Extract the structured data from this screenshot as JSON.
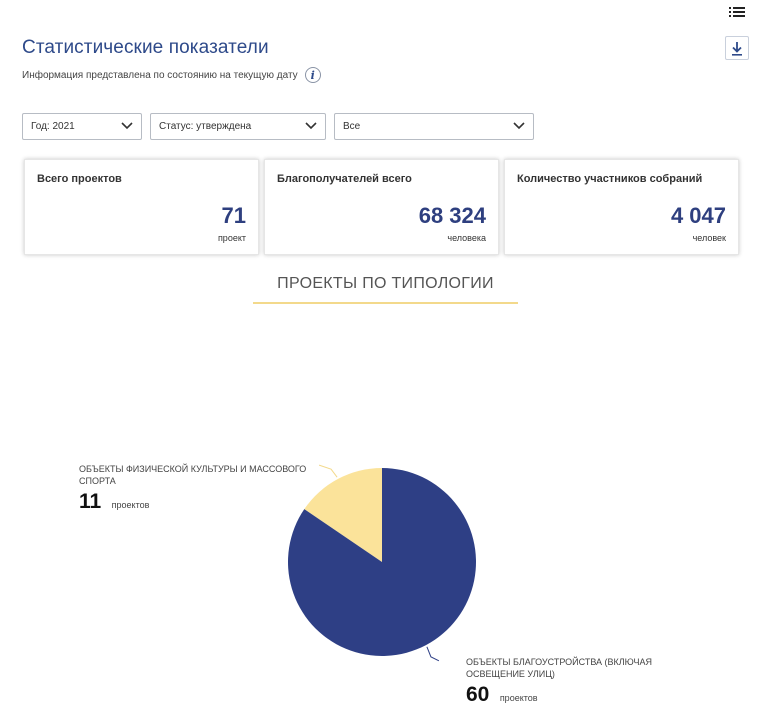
{
  "header": {
    "title": "Статистические показатели",
    "subtitle": "Информация представлена по состоянию на текущую дату"
  },
  "toolbar": {
    "menu_icon": "list-icon",
    "download_icon": "download-icon"
  },
  "filters": [
    {
      "value": "Год: 2021"
    },
    {
      "value": "Статус: утверждена"
    },
    {
      "value": "Все"
    }
  ],
  "cards": [
    {
      "label": "Всего проектов",
      "value": "71",
      "unit": "проект"
    },
    {
      "label": "Благополучателей всего",
      "value": "68 324",
      "unit": "человека"
    },
    {
      "label": "Количество участников собраний",
      "value": "4 047",
      "unit": "человек"
    }
  ],
  "section": {
    "title": "ПРОЕКТЫ ПО ТИПОЛОГИИ"
  },
  "chart_data": {
    "type": "pie",
    "slices": [
      {
        "label": "ОБЪЕКТЫ ФИЗИЧЕСКОЙ КУЛЬТУРЫ И МАССОВОГО СПОРТА",
        "value": 11,
        "unit": "проектов",
        "color": "#fbe39a"
      },
      {
        "label": "ОБЪЕКТЫ БЛАГОУСТРОЙСТВА (ВКЛЮЧАЯ ОСВЕЩЕНИЕ УЛИЦ)",
        "value": 60,
        "unit": "проектов",
        "color": "#2e3f85"
      }
    ]
  },
  "colors": {
    "accent": "#2e4a8a",
    "value": "#2e3f7f",
    "underline": "#f3d98b"
  }
}
